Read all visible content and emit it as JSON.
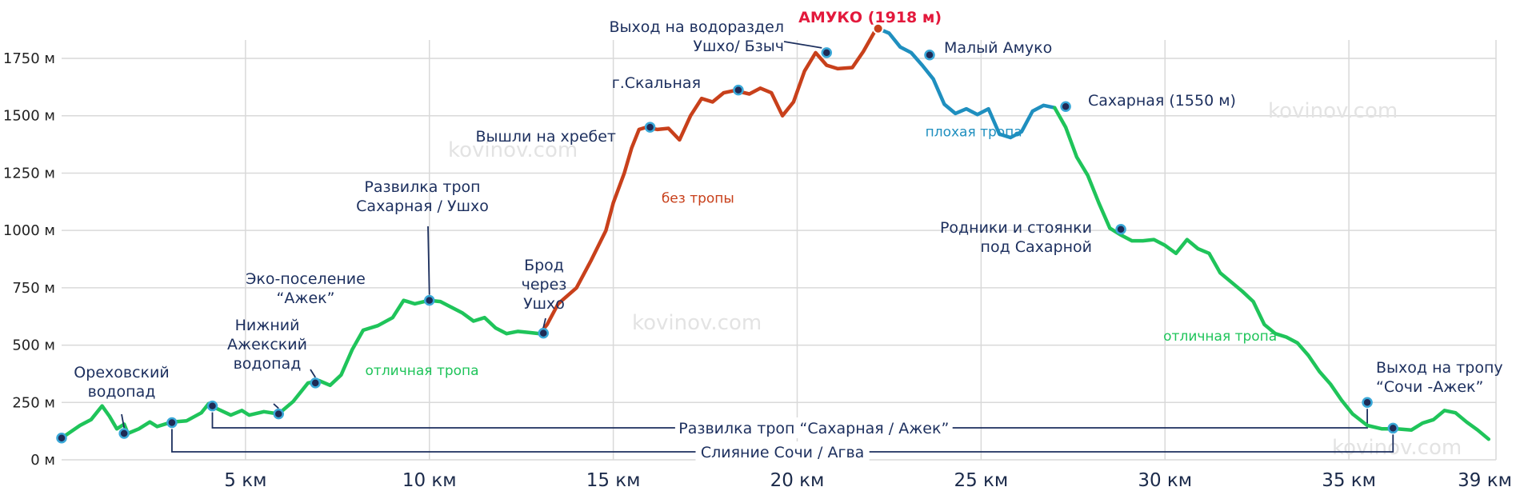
{
  "chart_data": {
    "type": "line",
    "title": "",
    "xlabel": "",
    "ylabel": "",
    "xlim": [
      0,
      39
    ],
    "ylim": [
      0,
      1900
    ],
    "y_ticks": [
      {
        "value": 0,
        "label": "0 м"
      },
      {
        "value": 250,
        "label": "250 м"
      },
      {
        "value": 500,
        "label": "500 м"
      },
      {
        "value": 750,
        "label": "750 м"
      },
      {
        "value": 1000,
        "label": "1000 м"
      },
      {
        "value": 1250,
        "label": "1250 м"
      },
      {
        "value": 1500,
        "label": "1500 м"
      },
      {
        "value": 1750,
        "label": "1750 м"
      }
    ],
    "x_ticks": [
      {
        "value": 5,
        "label": "5 км"
      },
      {
        "value": 10,
        "label": "10 км"
      },
      {
        "value": 15,
        "label": "15 км"
      },
      {
        "value": 20,
        "label": "20 км"
      },
      {
        "value": 25,
        "label": "25 км"
      },
      {
        "value": 30,
        "label": "30 км"
      },
      {
        "value": 35,
        "label": "35 км"
      },
      {
        "value": 39,
        "label": "39 км"
      }
    ],
    "profile": [
      [
        0,
        95
      ],
      [
        0.5,
        150
      ],
      [
        0.8,
        175
      ],
      [
        1.1,
        235
      ],
      [
        1.3,
        190
      ],
      [
        1.5,
        135
      ],
      [
        1.7,
        155
      ],
      [
        1.8,
        115
      ],
      [
        2.1,
        135
      ],
      [
        2.4,
        165
      ],
      [
        2.6,
        145
      ],
      [
        3.0,
        165
      ],
      [
        3.4,
        170
      ],
      [
        3.8,
        205
      ],
      [
        4.0,
        245
      ],
      [
        4.2,
        225
      ],
      [
        4.6,
        195
      ],
      [
        4.9,
        215
      ],
      [
        5.1,
        195
      ],
      [
        5.5,
        210
      ],
      [
        5.9,
        200
      ],
      [
        6.3,
        255
      ],
      [
        6.7,
        335
      ],
      [
        7.0,
        345
      ],
      [
        7.3,
        325
      ],
      [
        7.6,
        370
      ],
      [
        7.9,
        480
      ],
      [
        8.2,
        565
      ],
      [
        8.6,
        585
      ],
      [
        9.0,
        620
      ],
      [
        9.3,
        695
      ],
      [
        9.6,
        680
      ],
      [
        10.0,
        695
      ],
      [
        10.3,
        690
      ],
      [
        10.6,
        665
      ],
      [
        10.9,
        640
      ],
      [
        11.2,
        605
      ],
      [
        11.5,
        620
      ],
      [
        11.8,
        575
      ],
      [
        12.1,
        550
      ],
      [
        12.4,
        560
      ],
      [
        12.7,
        555
      ],
      [
        13.0,
        550
      ],
      [
        13.2,
        590
      ],
      [
        13.5,
        680
      ],
      [
        14.0,
        750
      ],
      [
        14.4,
        870
      ],
      [
        14.8,
        1000
      ],
      [
        15.0,
        1120
      ],
      [
        15.3,
        1250
      ],
      [
        15.5,
        1360
      ],
      [
        15.7,
        1440
      ],
      [
        15.9,
        1450
      ],
      [
        16.2,
        1440
      ],
      [
        16.5,
        1445
      ],
      [
        16.8,
        1395
      ],
      [
        17.1,
        1500
      ],
      [
        17.4,
        1575
      ],
      [
        17.7,
        1560
      ],
      [
        18.0,
        1600
      ],
      [
        18.3,
        1610
      ],
      [
        18.7,
        1595
      ],
      [
        19.0,
        1620
      ],
      [
        19.3,
        1600
      ],
      [
        19.6,
        1500
      ],
      [
        19.9,
        1560
      ],
      [
        20.2,
        1695
      ],
      [
        20.5,
        1775
      ],
      [
        20.8,
        1720
      ],
      [
        21.1,
        1705
      ],
      [
        21.5,
        1710
      ],
      [
        21.8,
        1780
      ],
      [
        22.1,
        1865
      ],
      [
        22.2,
        1880
      ],
      [
        22.5,
        1860
      ],
      [
        22.8,
        1800
      ],
      [
        23.1,
        1775
      ],
      [
        23.4,
        1720
      ],
      [
        23.7,
        1660
      ],
      [
        24.0,
        1550
      ],
      [
        24.3,
        1510
      ],
      [
        24.6,
        1530
      ],
      [
        24.9,
        1505
      ],
      [
        25.2,
        1530
      ],
      [
        25.5,
        1420
      ],
      [
        25.8,
        1405
      ],
      [
        26.1,
        1430
      ],
      [
        26.4,
        1520
      ],
      [
        26.7,
        1545
      ],
      [
        27.0,
        1535
      ],
      [
        27.3,
        1450
      ],
      [
        27.6,
        1320
      ],
      [
        27.9,
        1240
      ],
      [
        28.2,
        1120
      ],
      [
        28.5,
        1010
      ],
      [
        28.8,
        980
      ],
      [
        29.1,
        955
      ],
      [
        29.4,
        955
      ],
      [
        29.7,
        960
      ],
      [
        30.0,
        935
      ],
      [
        30.3,
        900
      ],
      [
        30.6,
        960
      ],
      [
        30.9,
        920
      ],
      [
        31.2,
        900
      ],
      [
        31.5,
        815
      ],
      [
        31.8,
        775
      ],
      [
        32.1,
        735
      ],
      [
        32.4,
        690
      ],
      [
        32.7,
        590
      ],
      [
        33.0,
        550
      ],
      [
        33.3,
        535
      ],
      [
        33.6,
        510
      ],
      [
        33.9,
        455
      ],
      [
        34.2,
        385
      ],
      [
        34.5,
        330
      ],
      [
        34.8,
        260
      ],
      [
        35.1,
        200
      ],
      [
        35.5,
        150
      ],
      [
        35.9,
        135
      ],
      [
        36.3,
        135
      ],
      [
        36.7,
        130
      ],
      [
        37.0,
        160
      ],
      [
        37.3,
        175
      ],
      [
        37.6,
        215
      ],
      [
        37.9,
        205
      ],
      [
        38.2,
        165
      ],
      [
        38.5,
        130
      ],
      [
        38.8,
        90
      ]
    ],
    "segments": [
      {
        "name": "отличная тропа",
        "from": 0,
        "to": 13.0,
        "color": "#1fc45a"
      },
      {
        "name": "без тропы",
        "from": 13.0,
        "to": 22.2,
        "color": "#c8401b"
      },
      {
        "name": "плохая тропа",
        "from": 22.2,
        "to": 27.0,
        "color": "#1f8fbf"
      },
      {
        "name": "отличная тропа",
        "from": 27.0,
        "to": 39,
        "color": "#1fc45a"
      }
    ],
    "section_labels": [
      {
        "text": "отличная тропа",
        "x": 9.8,
        "y": 370,
        "class": "sect-green"
      },
      {
        "text": "без тропы",
        "x": 17.3,
        "y": 1120,
        "class": "sect-red"
      },
      {
        "text": "плохая тропа",
        "x": 24.8,
        "y": 1410,
        "class": "sect-blue"
      },
      {
        "text": "отличная тропа",
        "x": 31.5,
        "y": 520,
        "class": "sect-green"
      }
    ],
    "peak": {
      "name": "АМУКО (1918 м)",
      "x": 22.2,
      "y": 1880
    },
    "points": [
      {
        "name": "start",
        "x": 0.0,
        "y": 95
      },
      {
        "name": "Ореховский водопад",
        "x": 1.7,
        "y": 115
      },
      {
        "name": "Слияние Сочи / Агва",
        "x": 3.0,
        "y": 162
      },
      {
        "name": "Развилка троп Сахарная / Ажек",
        "x": 4.1,
        "y": 235
      },
      {
        "name": "Нижний Ажекский водопад",
        "x": 5.9,
        "y": 200
      },
      {
        "name": "Эко-поселение Ажек",
        "x": 6.9,
        "y": 335
      },
      {
        "name": "Развилка троп Сахарная / Ушхо",
        "x": 10.0,
        "y": 695
      },
      {
        "name": "Брод через Ушхо",
        "x": 13.1,
        "y": 552
      },
      {
        "name": "Вышли на хребет",
        "x": 16.0,
        "y": 1450
      },
      {
        "name": "г.Скальная",
        "x": 18.4,
        "y": 1612
      },
      {
        "name": "Выход на водораздел Ушхо/ Бзыч",
        "x": 20.8,
        "y": 1775
      },
      {
        "name": "Малый Амуко",
        "x": 23.6,
        "y": 1765
      },
      {
        "name": "Сахарная (1550 м)",
        "x": 27.3,
        "y": 1540
      },
      {
        "name": "Родники и стоянки под Сахарной",
        "x": 28.8,
        "y": 1005
      },
      {
        "name": "Выход на тропу Сочи -Ажек",
        "x": 35.5,
        "y": 250
      },
      {
        "name": "end-confluence",
        "x": 36.2,
        "y": 138
      }
    ],
    "annotations": [
      {
        "id": "orekh",
        "lines": [
          "Ореховский",
          "водопад"
        ],
        "point": 1
      },
      {
        "id": "nizh",
        "lines": [
          "Нижний",
          "Ажекский",
          "водопад"
        ],
        "point": 4
      },
      {
        "id": "eko",
        "lines": [
          "Эко-поселение",
          "“Ажек”"
        ],
        "point": 5
      },
      {
        "id": "razv-ush",
        "lines": [
          "Развилка троп",
          "Сахарная / Ушхо"
        ],
        "point": 6
      },
      {
        "id": "brod",
        "lines": [
          "Брод",
          "через",
          "Ушхо"
        ],
        "point": 7
      },
      {
        "id": "hreb",
        "lines": [
          "Вышли на хребет"
        ],
        "point": 8
      },
      {
        "id": "skal",
        "lines": [
          "г.Скальная"
        ],
        "point": 9
      },
      {
        "id": "vodor",
        "lines": [
          "Выход на водораздел",
          "Ушхо/ Бзыч"
        ],
        "point": 10
      },
      {
        "id": "malyi",
        "lines": [
          "Малый Амуко"
        ],
        "point": 11
      },
      {
        "id": "sahar",
        "lines": [
          "Сахарная (1550 м)"
        ],
        "point": 12
      },
      {
        "id": "rodn",
        "lines": [
          "Родники и стоянки",
          "под Сахарной"
        ],
        "point": 13
      },
      {
        "id": "vyhod",
        "lines": [
          "Выход на тропу",
          "“Сочи -Ажек”"
        ],
        "point": 14
      }
    ],
    "brackets": [
      {
        "text": "Развилка троп “Сахарная / Ажек”",
        "from_point": 3,
        "to_point": 14
      },
      {
        "text": "Слияние Сочи / Агва",
        "from_point": 2,
        "to_point": 15
      }
    ]
  },
  "watermarks": [
    "kovinov.com",
    "kovinov.com",
    "kovinov.com",
    "kovinov.com"
  ]
}
